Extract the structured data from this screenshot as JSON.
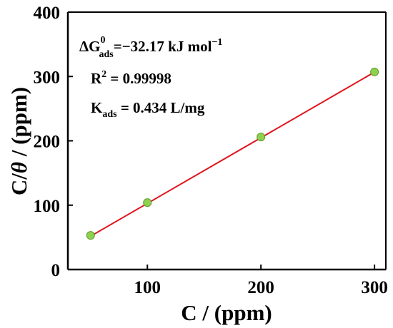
{
  "chart_data": {
    "type": "scatter",
    "xlabel": "C / (ppm)",
    "ylabel_prefix": "C/",
    "ylabel_symbol": "θ",
    "ylabel_suffix": " / (ppm)",
    "xlim": [
      30,
      310
    ],
    "ylim": [
      0,
      400
    ],
    "x_ticks": [
      100,
      200,
      300
    ],
    "y_ticks": [
      0,
      100,
      200,
      300,
      400
    ],
    "points": [
      {
        "x": 50,
        "y": 53
      },
      {
        "x": 100,
        "y": 104
      },
      {
        "x": 200,
        "y": 206
      },
      {
        "x": 300,
        "y": 307
      }
    ],
    "fit_line": {
      "x_start": 50,
      "y_start": 51.8,
      "x_end": 300,
      "y_end": 306.8
    },
    "annotations": {
      "gibbs": {
        "prefix": "ΔG",
        "sup": "0",
        "sub": "ads",
        "value": "=−32.17 kJ mol",
        "unit_sup": "−1"
      },
      "r2": {
        "prefix": "R",
        "sup": "2",
        "value": " = 0.99998"
      },
      "kads": {
        "prefix": "K",
        "sub": "ads",
        "value": " = 0.434 L/mg"
      }
    },
    "colors": {
      "marker": "#8fd14f",
      "marker_stroke": "#5a9a2a",
      "fit_line": "#e0141e",
      "axis": "#000000"
    }
  }
}
